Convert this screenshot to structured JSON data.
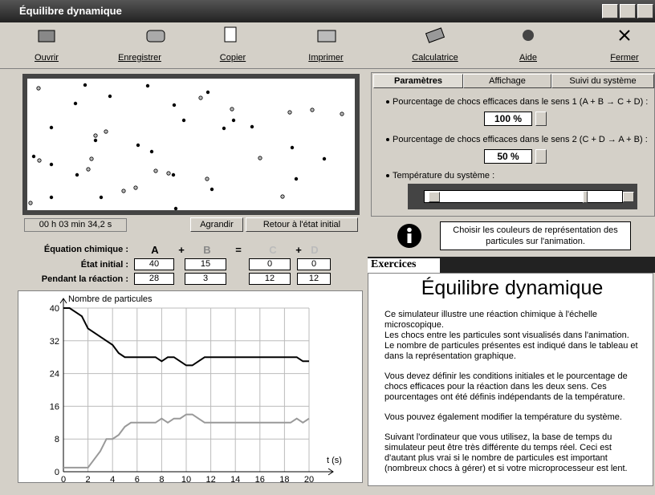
{
  "window": {
    "title": "Équilibre dynamique"
  },
  "toolbar": [
    "Ouvrir",
    "Enregistrer",
    "Copier",
    "Imprimer",
    "Calculatrice",
    "Aide",
    "Fermer"
  ],
  "animation": {
    "timer": "00 h 03 min 34,2 s",
    "buttons": [
      "Agrandir",
      "Retour à l'état initial"
    ]
  },
  "equation": {
    "label": "Équation chimique :",
    "species": [
      "A",
      "+",
      "B",
      "=",
      "C",
      "+",
      "D"
    ],
    "rows": [
      {
        "label": "État initial :",
        "values": [
          40,
          15,
          0,
          0
        ]
      },
      {
        "label": "Pendant la réaction :",
        "values": [
          28,
          3,
          12,
          12
        ]
      }
    ]
  },
  "tabs": [
    "Paramètres",
    "Affichage",
    "Suivi du système"
  ],
  "parameters": {
    "items": [
      {
        "label": "Pourcentage de chocs efficaces dans le sens 1 (A + B → C + D) :",
        "value": "100 %"
      },
      {
        "label": "Pourcentage de chocs efficaces dans le sens 2 (C + D → A + B) :",
        "value": "50 %"
      }
    ],
    "temperature": "Température du système :"
  },
  "info": "Choisir les couleurs de représentation des particules sur l'animation.",
  "exercises": {
    "tab": "Exercices",
    "title": "Équilibre dynamique",
    "paragraphs": [
      "Ce simulateur illustre une réaction chimique à l'échelle microscopique.",
      "Les chocs entre les particules sont visualisés dans l'animation. Le nombre de particules présentes est indiqué dans le tableau et dans la représentation graphique.",
      "Vous devez définir les conditions initiales et le pourcentage de chocs efficaces pour la réaction dans les deux sens. Ces pourcentages ont été définis indépendants de la température.",
      "Vous pouvez également modifier la température du système.",
      "Suivant l'ordinateur que vous utilisez, la base de temps du simulateur peut être très différente du temps réel. Ceci est d'autant plus vrai si le nombre de particules est important (nombreux chocs à gérer) et si votre microprocesseur est lent."
    ]
  },
  "chart_data": {
    "type": "line",
    "y_label": "Nombre de particules",
    "x_label": "t (s)",
    "x": [
      0,
      0.5,
      1,
      1.5,
      2,
      2.5,
      3,
      3.5,
      4,
      4.5,
      5,
      5.5,
      6,
      6.5,
      7,
      7.5,
      8,
      8.5,
      9,
      9.5,
      10,
      10.5,
      11,
      11.5,
      12,
      12.5,
      13,
      13.5,
      14,
      14.5,
      15,
      15.5,
      16,
      16.5,
      17,
      17.5,
      18,
      18.5,
      19,
      19.5,
      20
    ],
    "series": [
      {
        "color": "#000000",
        "values": [
          40,
          40,
          39,
          38,
          35,
          34,
          33,
          32,
          31,
          29,
          28,
          28,
          28,
          28,
          28,
          28,
          27,
          28,
          28,
          27,
          26,
          26,
          27,
          28,
          28,
          28,
          28,
          28,
          28,
          28,
          28,
          28,
          28,
          28,
          28,
          28,
          28,
          28,
          28,
          27,
          27
        ]
      },
      {
        "color": "#999999",
        "values": [
          1,
          1,
          1,
          1,
          1,
          3,
          5,
          8,
          8,
          9,
          11,
          12,
          12,
          12,
          12,
          12,
          13,
          12,
          13,
          13,
          14,
          14,
          13,
          12,
          12,
          12,
          12,
          12,
          12,
          12,
          12,
          12,
          12,
          12,
          12,
          12,
          12,
          12,
          13,
          12,
          13
        ]
      }
    ],
    "xlim": [
      0,
      20
    ],
    "ylim": [
      0,
      40
    ],
    "xticks": [
      0,
      2,
      4,
      6,
      8,
      10,
      12,
      14,
      16,
      18,
      20
    ],
    "yticks": [
      0,
      8,
      16,
      24,
      32,
      40
    ],
    "grid": true
  }
}
